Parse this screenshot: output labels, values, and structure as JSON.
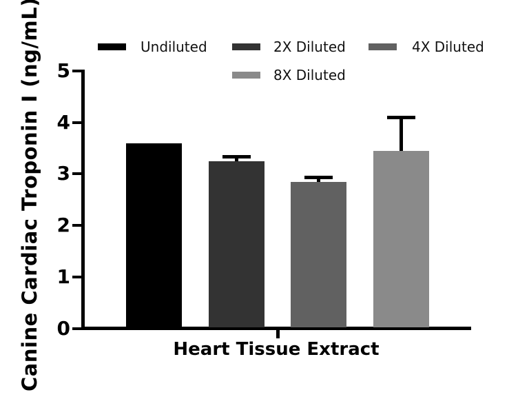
{
  "background_color": "#ffffff",
  "axis_color": "#000000",
  "chart_data": {
    "type": "bar",
    "title": "",
    "ylabel": "Canine Cardiac Troponin I (ng/mL)",
    "xlabel": "",
    "categories": [
      "Heart Tissue Extract"
    ],
    "ylim": [
      0,
      5
    ],
    "yticks": [
      0,
      1,
      2,
      3,
      4,
      5
    ],
    "grid": "off",
    "legend_position": "top",
    "series": [
      {
        "name": "Undiluted",
        "value": 3.6,
        "error": 0,
        "color": "#000000"
      },
      {
        "name": "2X Diluted",
        "value": 3.25,
        "error": 0.08,
        "color": "#333333"
      },
      {
        "name": "4X Diluted",
        "value": 2.85,
        "error": 0.08,
        "color": "#616161"
      },
      {
        "name": "8X Diluted",
        "value": 3.45,
        "error": 0.65,
        "color": "#8a8a8a"
      }
    ]
  }
}
